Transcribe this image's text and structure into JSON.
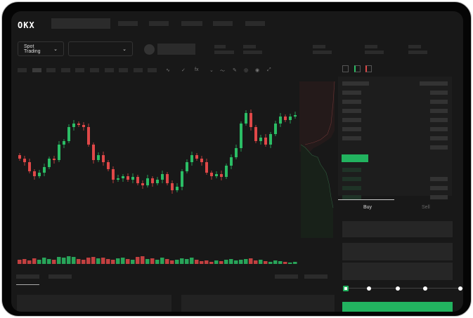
{
  "header": {
    "logo": "OKX"
  },
  "market": {
    "mode_label": "Spot Trading",
    "mode_icon": "chevron-down-icon",
    "pair_icon": "chevron-down-icon"
  },
  "chart_tools": [
    "line-icon",
    "check-icon",
    "fx-icon",
    "chevron-down-icon",
    "wave-icon",
    "pencil-icon",
    "magnet-icon",
    "target-icon",
    "expand-icon"
  ],
  "orderbook": {
    "view_icons": [
      "both-sides-icon",
      "bids-icon",
      "asks-icon"
    ]
  },
  "trade": {
    "tabs": [
      {
        "label": "Buy",
        "active": true
      },
      {
        "label": "Sell",
        "active": false
      }
    ],
    "slider_percent": 0
  },
  "colors": {
    "up": "#2bbd65",
    "down": "#e04848",
    "accent": "#22b35f"
  },
  "candles": {
    "open_first": 95,
    "closes": [
      90,
      85,
      72,
      65,
      70,
      78,
      90,
      88,
      110,
      115,
      135,
      140,
      138,
      135,
      110,
      88,
      95,
      85,
      75,
      60,
      62,
      65,
      60,
      64,
      55,
      52,
      62,
      55,
      60,
      68,
      55,
      45,
      50,
      72,
      85,
      95,
      90,
      85,
      70,
      65,
      68,
      64,
      80,
      92,
      105,
      140,
      155,
      135,
      115,
      120,
      110,
      125,
      140,
      150,
      145,
      150,
      152
    ],
    "volumes": [
      9,
      10,
      8,
      11,
      9,
      12,
      10,
      9,
      13,
      12,
      14,
      13,
      10,
      9,
      12,
      13,
      11,
      12,
      10,
      9,
      11,
      12,
      10,
      9,
      13,
      14,
      10,
      11,
      9,
      12,
      10,
      8,
      9,
      11,
      10,
      12,
      9,
      7,
      8,
      6,
      8,
      7,
      9,
      10,
      8,
      9,
      10,
      11,
      8,
      9,
      7,
      6,
      8,
      7,
      6,
      5,
      6
    ]
  }
}
